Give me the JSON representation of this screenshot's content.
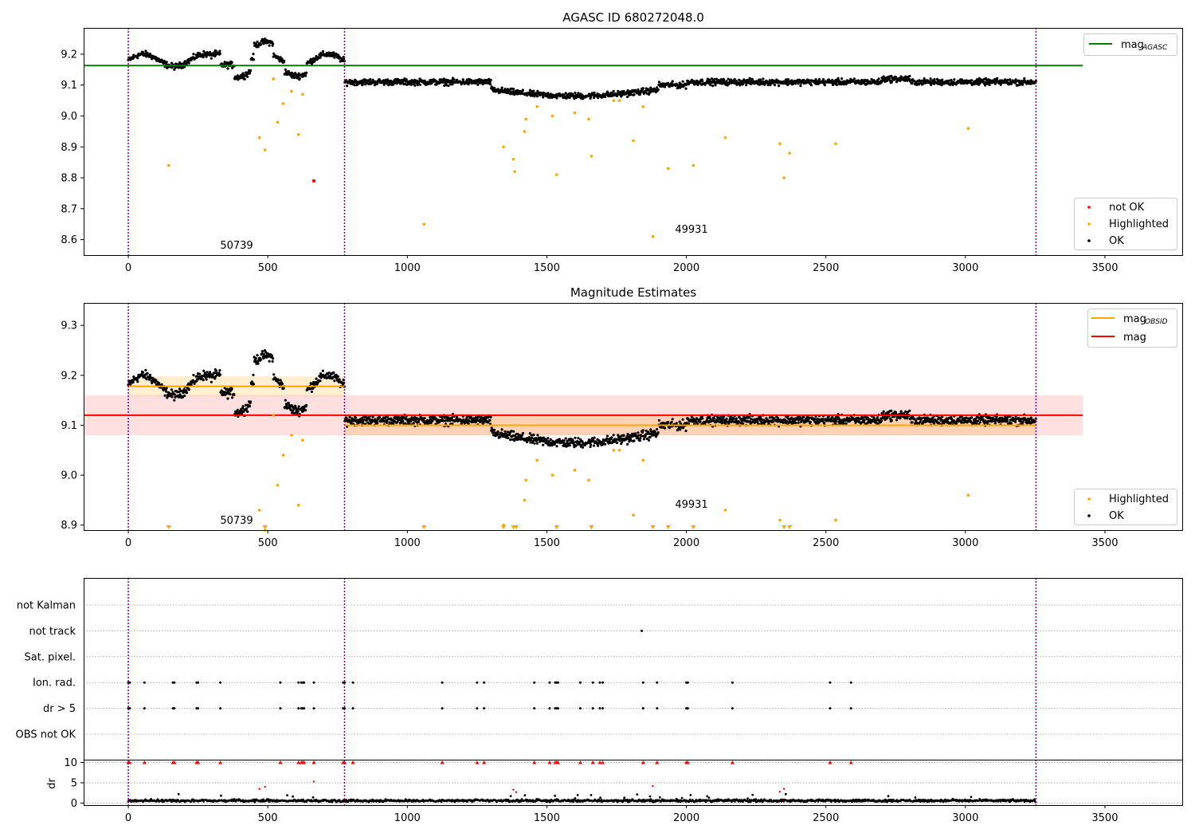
{
  "chart_data": [
    {
      "type": "scatter",
      "title": "AGASC ID 680272048.0",
      "xlim": [
        -160,
        3780
      ],
      "ylim": [
        8.55,
        9.285
      ],
      "yticks": [
        8.6,
        8.7,
        8.8,
        8.9,
        9.0,
        9.1,
        9.2
      ],
      "xticks": [
        0,
        500,
        1000,
        1500,
        2000,
        2500,
        3000,
        3500
      ],
      "vlines": [
        0,
        775,
        3253
      ],
      "reference_lines": [
        {
          "name": "mag$_{AGASC}$",
          "label_main": "mag",
          "label_sub": "AGASC",
          "color": "#008000",
          "y": 9.163,
          "x": [
            -160,
            3420
          ]
        }
      ],
      "obsid_labels": [
        {
          "text": "50739",
          "x": 385,
          "y": 8.57
        },
        {
          "text": "49931",
          "x": 2015,
          "y": 8.62
        }
      ],
      "series": [
        {
          "name": "not OK",
          "color": "#ff0000",
          "points": [
            [
              665,
              8.79
            ]
          ]
        },
        {
          "name": "Highlighted",
          "color": "#ffa500",
          "points": [
            [
              145,
              8.84
            ],
            [
              470,
              8.93
            ],
            [
              490,
              8.89
            ],
            [
              520,
              9.12
            ],
            [
              535,
              8.98
            ],
            [
              555,
              9.04
            ],
            [
              585,
              9.08
            ],
            [
              610,
              8.94
            ],
            [
              625,
              9.07
            ],
            [
              1060,
              8.65
            ],
            [
              1345,
              8.9
            ],
            [
              1380,
              8.86
            ],
            [
              1385,
              8.82
            ],
            [
              1420,
              8.95
            ],
            [
              1425,
              8.99
            ],
            [
              1465,
              9.03
            ],
            [
              1520,
              9.0
            ],
            [
              1535,
              8.81
            ],
            [
              1600,
              9.01
            ],
            [
              1650,
              8.99
            ],
            [
              1660,
              8.87
            ],
            [
              1740,
              9.05
            ],
            [
              1760,
              9.05
            ],
            [
              1810,
              8.92
            ],
            [
              1845,
              9.03
            ],
            [
              1880,
              8.61
            ],
            [
              1935,
              8.83
            ],
            [
              2025,
              8.84
            ],
            [
              2140,
              8.93
            ],
            [
              2335,
              8.91
            ],
            [
              2350,
              8.8
            ],
            [
              2370,
              8.88
            ],
            [
              2535,
              8.91
            ],
            [
              3010,
              8.96
            ]
          ]
        },
        {
          "name": "OK",
          "color": "#000000",
          "points": "generated from trend"
        }
      ],
      "legend_main": {
        "placement": "top-right"
      },
      "legend_status": {
        "placement": "lower-right",
        "entries": [
          "not OK",
          "Highlighted",
          "OK"
        ]
      }
    },
    {
      "type": "scatter",
      "title": "Magnitude Estimates",
      "xlim": [
        -160,
        3780
      ],
      "ylim": [
        8.89,
        9.345
      ],
      "yticks": [
        8.9,
        9.0,
        9.1,
        9.2,
        9.3
      ],
      "xticks": [
        0,
        500,
        1000,
        1500,
        2000,
        2500,
        3000,
        3500
      ],
      "vlines": [
        0,
        775,
        3253
      ],
      "reference_lines": [
        {
          "name": "mag$_{OBSID}$",
          "label_main": "mag",
          "label_sub": "OBSID",
          "color": "#ffa500",
          "segments": [
            {
              "x": [
                0,
                775
              ],
              "y": 9.178,
              "band": [
                9.158,
                9.198
              ]
            },
            {
              "x": [
                775,
                3253
              ],
              "y": 9.1,
              "band": [
                9.08,
                9.12
              ]
            }
          ]
        },
        {
          "name": "mag",
          "label_main": "mag",
          "label_sub": "",
          "color": "#ff0000",
          "y": 9.12,
          "band": [
            9.08,
            9.16
          ],
          "x": [
            -160,
            3420
          ]
        }
      ],
      "obsid_labels": [
        {
          "text": "50739",
          "x": 385,
          "y": 8.9
        },
        {
          "text": "49931",
          "x": 2015,
          "y": 8.94
        }
      ],
      "lower_limit_markers_x": [
        145,
        490,
        1060,
        1345,
        1380,
        1390,
        1535,
        1660,
        1880,
        1935,
        2025,
        2350,
        2370
      ],
      "legend_main": {
        "placement": "top-right"
      },
      "legend_status": {
        "placement": "lower-right",
        "entries": [
          "Highlighted",
          "OK"
        ]
      }
    },
    {
      "type": "scatter",
      "xlim": [
        -160,
        3780
      ],
      "xticks": [
        0,
        500,
        1000,
        1500,
        2000,
        2500,
        3000,
        3500
      ],
      "vlines": [
        0,
        775,
        3253
      ],
      "flag_rows": [
        "not Kalman",
        "not track",
        "Sat. pixel.",
        "Ion. rad.",
        "dr > 5",
        "OBS not OK"
      ],
      "flag_points": {
        "not track": [
          1840
        ],
        "Ion. rad.": [
          0,
          5,
          58,
          160,
          165,
          245,
          250,
          330,
          545,
          610,
          620,
          625,
          630,
          665,
          770,
          775,
          805,
          1125,
          1250,
          1275,
          1455,
          1510,
          1530,
          1535,
          1540,
          1620,
          1665,
          1690,
          1700,
          1845,
          1895,
          2000,
          2005,
          2165,
          2515,
          2590
        ],
        "dr > 5": [
          0,
          5,
          58,
          160,
          165,
          245,
          250,
          330,
          545,
          610,
          620,
          625,
          630,
          665,
          770,
          775,
          805,
          1125,
          1250,
          1275,
          1455,
          1510,
          1530,
          1535,
          1540,
          1620,
          1665,
          1690,
          1700,
          1845,
          1895,
          2000,
          2005,
          2165,
          2515,
          2590
        ]
      },
      "dr_panel": {
        "ylabel": "dr",
        "yticks": [
          0,
          5,
          10
        ],
        "ylim": [
          -0.5,
          10.5
        ],
        "clipped_at_10_x": [
          0,
          5,
          58,
          160,
          165,
          245,
          250,
          330,
          545,
          610,
          620,
          625,
          630,
          665,
          770,
          775,
          805,
          1125,
          1250,
          1275,
          1455,
          1510,
          1530,
          1535,
          1540,
          1620,
          1665,
          1690,
          1700,
          1845,
          1895,
          2000,
          2005,
          2165,
          2515,
          2590
        ],
        "red_points": [
          [
            470,
            3.5
          ],
          [
            490,
            4.0
          ],
          [
            665,
            5.3
          ],
          [
            1380,
            3.3
          ],
          [
            1390,
            2.7
          ],
          [
            1880,
            4.2
          ],
          [
            2335,
            2.8
          ],
          [
            2350,
            3.5
          ]
        ]
      }
    }
  ]
}
